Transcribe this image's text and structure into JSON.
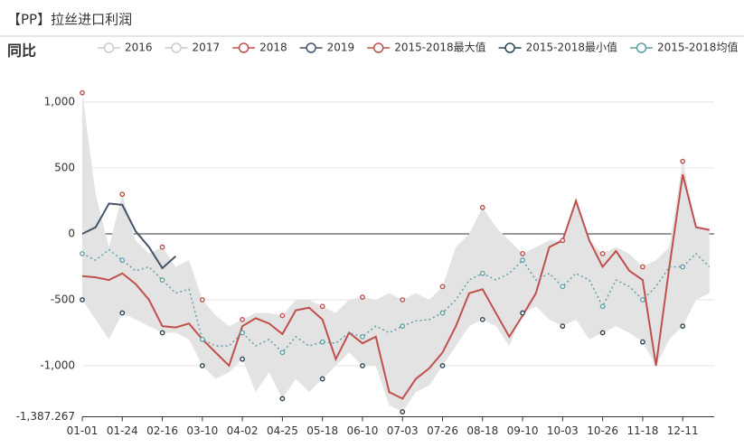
{
  "chart_data": {
    "type": "line",
    "title": "【PP】拉丝进口利润",
    "subtitle": "同比",
    "categories": [
      "01-01",
      null,
      null,
      "01-24",
      null,
      null,
      "02-16",
      null,
      null,
      "03-10",
      null,
      null,
      "04-02",
      null,
      null,
      "04-25",
      null,
      null,
      "05-18",
      null,
      null,
      "06-10",
      null,
      null,
      "07-03",
      null,
      null,
      "07-26",
      null,
      null,
      "08-18",
      null,
      null,
      "09-10",
      null,
      null,
      "10-03",
      null,
      null,
      "10-26",
      null,
      null,
      "11-18",
      null,
      null,
      "12-11",
      null,
      null
    ],
    "ylim": [
      -1387.267,
      1089
    ],
    "yticks": [
      {
        "value": -1387.267,
        "label": "-1,387.267"
      },
      {
        "value": -1000,
        "label": "-1,000"
      },
      -500,
      0,
      500,
      {
        "value": 1000,
        "label": "1,000"
      }
    ],
    "grid": true,
    "legend": "top",
    "series": [
      {
        "name": "2016",
        "color": "#cccccc",
        "visible": false
      },
      {
        "name": "2017",
        "color": "#cccccc",
        "visible": false
      },
      {
        "name": "2018",
        "color": "#c0504d",
        "style": "line",
        "values": [
          -320,
          -330,
          -350,
          -300,
          -380,
          -500,
          -700,
          -710,
          -680,
          -800,
          -900,
          -1000,
          -700,
          -640,
          -680,
          -760,
          -580,
          -560,
          -650,
          -950,
          -750,
          -830,
          -780,
          -1200,
          -1250,
          -1100,
          -1020,
          -900,
          -700,
          -450,
          -420,
          -600,
          -780,
          -620,
          -450,
          -100,
          -50,
          250,
          -50,
          -250,
          -130,
          -280,
          -350,
          -1000,
          -250,
          450,
          50,
          30
        ]
      },
      {
        "name": "2019",
        "color": "#44546a",
        "style": "line",
        "values": [
          0,
          50,
          230,
          220,
          20,
          -100,
          -260,
          -170,
          null,
          null,
          null,
          null,
          null,
          null,
          null,
          null,
          null,
          null,
          null,
          null,
          null,
          null,
          null,
          null,
          null,
          null,
          null,
          null,
          null,
          null,
          null,
          null,
          null,
          null,
          null,
          null,
          null,
          null,
          null,
          null,
          null,
          null,
          null,
          null,
          null,
          null,
          null,
          null
        ]
      },
      {
        "name": "2015-2018最大值",
        "color": "#c0504d",
        "style": "band-top",
        "values": [
          1070,
          300,
          -100,
          300,
          -50,
          -150,
          -100,
          -250,
          -200,
          -500,
          -620,
          -700,
          -650,
          -600,
          -600,
          -620,
          -500,
          -500,
          -550,
          -600,
          -500,
          -480,
          -500,
          -450,
          -500,
          -450,
          -500,
          -400,
          -100,
          0,
          200,
          50,
          -50,
          -150,
          -100,
          -50,
          -50,
          280,
          -50,
          -150,
          -100,
          -150,
          -250,
          -200,
          -100,
          550,
          60,
          40
        ]
      },
      {
        "name": "2015-2018最小值",
        "color": "#2f4554",
        "style": "band-bottom",
        "values": [
          -500,
          -650,
          -800,
          -600,
          -650,
          -700,
          -750,
          -750,
          -800,
          -1000,
          -1100,
          -1050,
          -950,
          -1200,
          -1050,
          -1250,
          -1100,
          -1200,
          -1100,
          -1000,
          -900,
          -1000,
          -1000,
          -1300,
          -1350,
          -1200,
          -1150,
          -1000,
          -850,
          -700,
          -650,
          -700,
          -850,
          -600,
          -550,
          -650,
          -700,
          -650,
          -800,
          -750,
          -700,
          -750,
          -820,
          -1000,
          -800,
          -700,
          -500,
          -450
        ]
      },
      {
        "name": "2015-2018均值",
        "color": "#61a0a8",
        "style": "dotted",
        "values": [
          -150,
          -200,
          -120,
          -200,
          -280,
          -250,
          -350,
          -450,
          -420,
          -800,
          -850,
          -850,
          -750,
          -850,
          -800,
          -900,
          -780,
          -850,
          -820,
          -830,
          -750,
          -780,
          -700,
          -750,
          -700,
          -660,
          -650,
          -600,
          -500,
          -350,
          -300,
          -350,
          -300,
          -200,
          -350,
          -300,
          -400,
          -300,
          -350,
          -550,
          -350,
          -400,
          -500,
          -400,
          -250,
          -250,
          -150,
          -250
        ]
      }
    ]
  }
}
